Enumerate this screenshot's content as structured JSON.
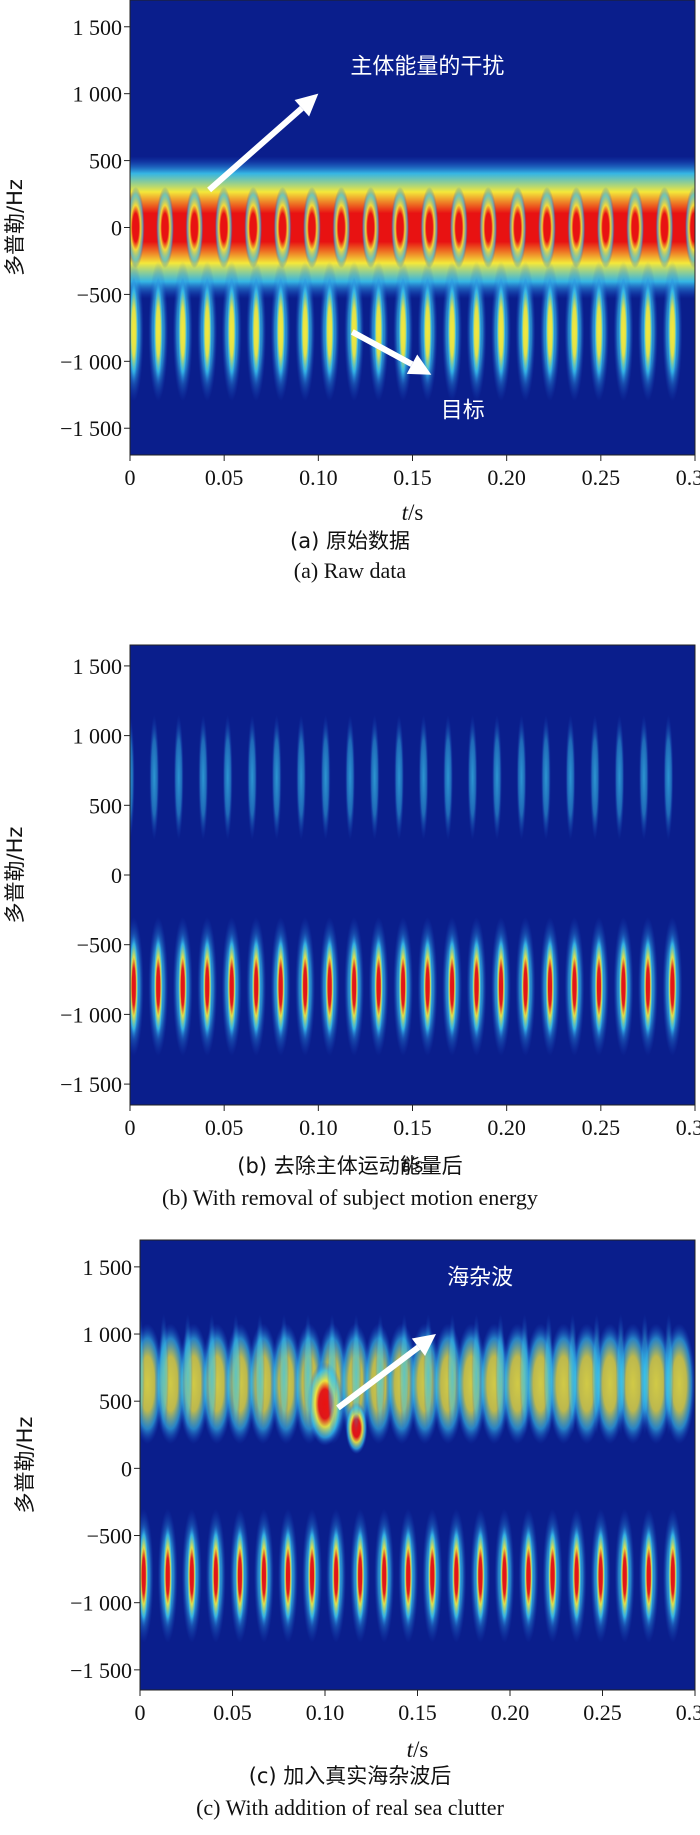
{
  "chart_data": [
    {
      "type": "heatmap",
      "ylabel": "多普勒/Hz",
      "xlabel_italic": "t",
      "xlabel_unit": "/s",
      "xlim": [
        0,
        0.3
      ],
      "ylim": [
        -1700,
        1700
      ],
      "xticks": [
        "0",
        "0.05",
        "0.10",
        "0.15",
        "0.20",
        "0.25",
        "0.30"
      ],
      "xtick_values": [
        0,
        0.05,
        0.1,
        0.15,
        0.2,
        0.25,
        0.3
      ],
      "yticks": [
        "1 500",
        "1 000",
        "500",
        "0",
        "−500",
        "−1 000",
        "−1 500"
      ],
      "ytick_values": [
        1500,
        1000,
        500,
        0,
        -500,
        -1000,
        -1500
      ],
      "annotations": [
        {
          "label": "主体能量的干扰",
          "arrow_to_t": 0.1,
          "arrow_to_f": 1000
        },
        {
          "label": "目标",
          "arrow_to_t": 0.16,
          "arrow_to_f": -1100
        }
      ],
      "caption_cn": "(a) 原始数据",
      "caption_en": "(a) Raw data",
      "features": {
        "body_band_center_hz": 0,
        "body_band_halfwidth_hz": 380,
        "target_pulse_period_s": 0.013,
        "target_doppler_range_hz": [
          -1300,
          -250
        ],
        "clutter": false
      }
    },
    {
      "type": "heatmap",
      "ylabel": "多普勒/Hz",
      "xlabel_italic": "t",
      "xlabel_unit": "/s",
      "xlim": [
        0,
        0.3
      ],
      "ylim": [
        -1650,
        1650
      ],
      "xticks": [
        "0",
        "0.05",
        "0.10",
        "0.15",
        "0.20",
        "0.25",
        "0.30"
      ],
      "xtick_values": [
        0,
        0.05,
        0.1,
        0.15,
        0.2,
        0.25,
        0.3
      ],
      "yticks": [
        "1 500",
        "1 000",
        "500",
        "0",
        "−500",
        "−1 000",
        "−1 500"
      ],
      "ytick_values": [
        1500,
        1000,
        500,
        0,
        -500,
        -1000,
        -1500
      ],
      "annotations": [],
      "caption_cn": "(b) 去除主体运动能量后",
      "caption_en": "(b) With removal of subject motion energy",
      "features": {
        "body_band_center_hz": null,
        "target_pulse_period_s": 0.013,
        "target_doppler_range_hz": [
          -1300,
          -300
        ],
        "clutter": false
      }
    },
    {
      "type": "heatmap",
      "ylabel": "多普勒/Hz",
      "xlabel_italic": "t",
      "xlabel_unit": "/s",
      "xlim": [
        0,
        0.3
      ],
      "ylim": [
        -1650,
        1700
      ],
      "xticks": [
        "0",
        "0.05",
        "0.10",
        "0.15",
        "0.20",
        "0.25",
        "0.30"
      ],
      "xtick_values": [
        0,
        0.05,
        0.1,
        0.15,
        0.2,
        0.25,
        0.3
      ],
      "yticks": [
        "1 500",
        "1 000",
        "500",
        "0",
        "−500",
        "−1 000",
        "−1 500"
      ],
      "ytick_values": [
        1500,
        1000,
        500,
        0,
        -500,
        -1000,
        -1500
      ],
      "annotations": [
        {
          "label": "海杂波",
          "arrow_to_t": 0.16,
          "arrow_to_f": 1000
        }
      ],
      "caption_cn": "(c) 加入真实海杂波后",
      "caption_en": "(c) With addition of real sea clutter",
      "features": {
        "body_band_center_hz": null,
        "target_pulse_period_s": 0.013,
        "target_doppler_range_hz": [
          -1300,
          -300
        ],
        "clutter": true,
        "clutter_doppler_range_hz": [
          100,
          1000
        ]
      }
    }
  ],
  "colors": {
    "background": "#0a1e8c",
    "low": "#1a4fd0",
    "mid_low": "#39c6ee",
    "mid": "#f4e83a",
    "high": "#e81212",
    "annotation_text": "#ffffff"
  }
}
